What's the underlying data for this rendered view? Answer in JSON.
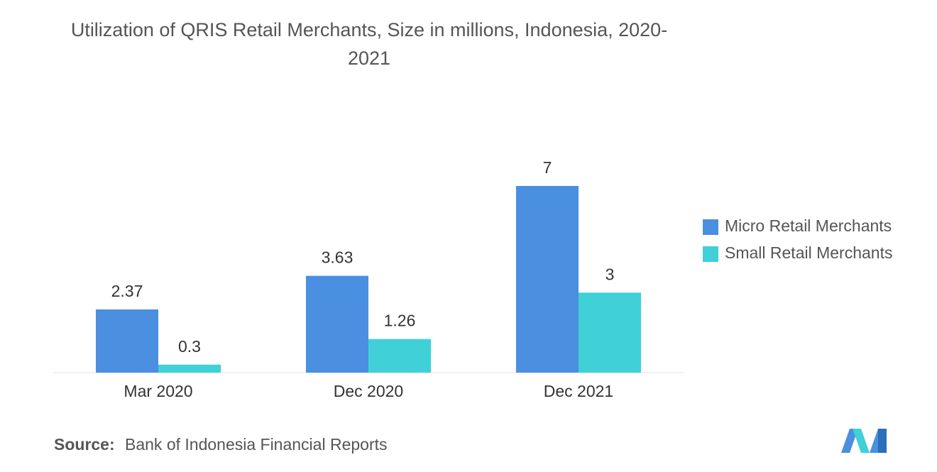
{
  "chart_data": {
    "type": "bar",
    "title": "Utilization of QRIS Retail Merchants, Size in millions, Indonesia, 2020-2021",
    "categories": [
      "Mar 2020",
      "Dec 2020",
      "Dec 2021"
    ],
    "series": [
      {
        "name": "Micro Retail Merchants",
        "color": "#4a8fe0",
        "values": [
          2.37,
          3.63,
          7
        ]
      },
      {
        "name": "Small Retail Merchants",
        "color": "#40d0d8",
        "values": [
          0.3,
          1.26,
          3
        ]
      }
    ],
    "legend": "right",
    "source_label": "Source:",
    "source": "Bank of Indonesia Financial Reports"
  }
}
